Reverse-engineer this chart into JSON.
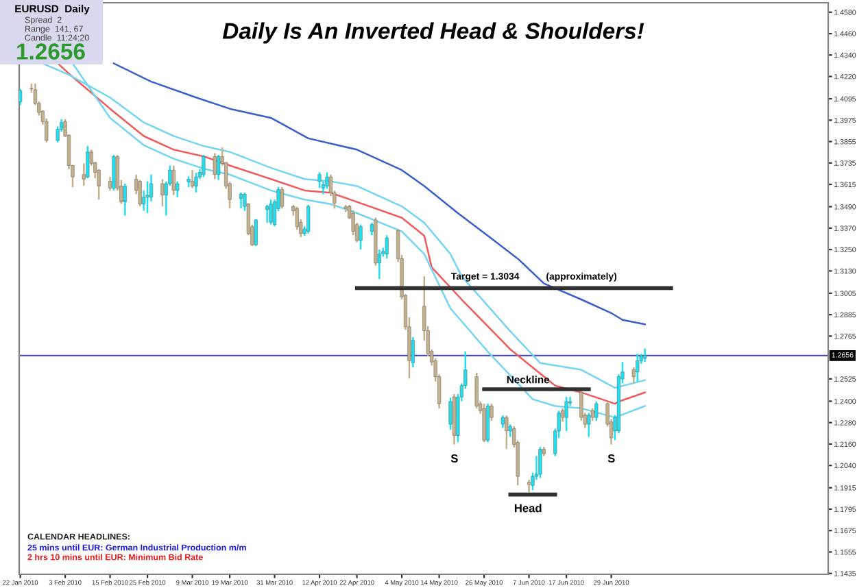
{
  "chart_data": {
    "type": "candlestick",
    "title": "Daily Is An Inverted Head & Shoulders!",
    "x": [
      "2010-01-22",
      "2010-01-25",
      "2010-01-26",
      "2010-01-27",
      "2010-01-28",
      "2010-01-29",
      "2010-02-01",
      "2010-02-02",
      "2010-02-03",
      "2010-02-04",
      "2010-02-05",
      "2010-02-08",
      "2010-02-09",
      "2010-02-10",
      "2010-02-11",
      "2010-02-12",
      "2010-02-15",
      "2010-02-16",
      "2010-02-17",
      "2010-02-18",
      "2010-02-19",
      "2010-02-22",
      "2010-02-23",
      "2010-02-24",
      "2010-02-25",
      "2010-02-26",
      "2010-03-01",
      "2010-03-02",
      "2010-03-03",
      "2010-03-04",
      "2010-03-05",
      "2010-03-08",
      "2010-03-09",
      "2010-03-10",
      "2010-03-11",
      "2010-03-12",
      "2010-03-15",
      "2010-03-16",
      "2010-03-17",
      "2010-03-18",
      "2010-03-19",
      "2010-03-22",
      "2010-03-23",
      "2010-03-24",
      "2010-03-25",
      "2010-03-26",
      "2010-03-29",
      "2010-03-30",
      "2010-03-31",
      "2010-04-01",
      "2010-04-02",
      "2010-04-05",
      "2010-04-06",
      "2010-04-07",
      "2010-04-08",
      "2010-04-09",
      "2010-04-12",
      "2010-04-13",
      "2010-04-14",
      "2010-04-15",
      "2010-04-16",
      "2010-04-19",
      "2010-04-20",
      "2010-04-21",
      "2010-04-22",
      "2010-04-23",
      "2010-04-26",
      "2010-04-27",
      "2010-04-28",
      "2010-04-29",
      "2010-04-30",
      "2010-05-03",
      "2010-05-04",
      "2010-05-05",
      "2010-05-06",
      "2010-05-07",
      "2010-05-10",
      "2010-05-11",
      "2010-05-12",
      "2010-05-13",
      "2010-05-14",
      "2010-05-17",
      "2010-05-18",
      "2010-05-19",
      "2010-05-20",
      "2010-05-21",
      "2010-05-24",
      "2010-05-25",
      "2010-05-26",
      "2010-05-27",
      "2010-05-28",
      "2010-05-31",
      "2010-06-01",
      "2010-06-02",
      "2010-06-03",
      "2010-06-04",
      "2010-06-07",
      "2010-06-08",
      "2010-06-09",
      "2010-06-10",
      "2010-06-11",
      "2010-06-14",
      "2010-06-15",
      "2010-06-16",
      "2010-06-17",
      "2010-06-18",
      "2010-06-21",
      "2010-06-22",
      "2010-06-23",
      "2010-06-24",
      "2010-06-25",
      "2010-06-28",
      "2010-06-29",
      "2010-06-30",
      "2010-07-01",
      "2010-07-02",
      "2010-07-05",
      "2010-07-06",
      "2010-07-07",
      "2010-07-08"
    ],
    "ohlc": [
      [
        1.4077,
        1.415,
        1.406,
        1.414
      ],
      [
        1.4153,
        1.418,
        1.413,
        1.415
      ],
      [
        1.4145,
        1.418,
        1.406,
        1.4069
      ],
      [
        1.4069,
        1.408,
        1.4,
        1.4018
      ],
      [
        1.4026,
        1.403,
        1.395,
        1.3967
      ],
      [
        1.3967,
        1.3985,
        1.385,
        1.3861
      ],
      [
        1.3861,
        1.394,
        1.385,
        1.3924
      ],
      [
        1.3924,
        1.398,
        1.391,
        1.3962
      ],
      [
        1.3967,
        1.398,
        1.388,
        1.3886
      ],
      [
        1.3891,
        1.3895,
        1.37,
        1.3721
      ],
      [
        1.3721,
        1.3725,
        1.36,
        1.3657
      ],
      [
        1.367,
        1.3733,
        1.3607,
        1.3645
      ],
      [
        1.3657,
        1.383,
        1.365,
        1.3797
      ],
      [
        1.3797,
        1.381,
        1.372,
        1.3733
      ],
      [
        1.3738,
        1.374,
        1.365,
        1.3683
      ],
      [
        1.3695,
        1.37,
        1.353,
        1.3606
      ],
      [
        1.3632,
        1.3657,
        1.358,
        1.3594
      ],
      [
        1.3594,
        1.378,
        1.358,
        1.3771
      ],
      [
        1.3771,
        1.378,
        1.358,
        1.3594
      ],
      [
        1.3606,
        1.364,
        1.3505,
        1.3517
      ],
      [
        1.3517,
        1.362,
        1.3441,
        1.3606
      ],
      [
        1.3644,
        1.367,
        1.356,
        1.3581
      ],
      [
        1.3632,
        1.364,
        1.3492,
        1.3505
      ],
      [
        1.3505,
        1.358,
        1.3467,
        1.3543
      ],
      [
        1.3543,
        1.3632,
        1.3454,
        1.3555
      ],
      [
        1.3543,
        1.367,
        1.352,
        1.3619
      ],
      [
        1.3619,
        1.3644,
        1.3492,
        1.3555
      ],
      [
        1.3555,
        1.3632,
        1.3441,
        1.3619
      ],
      [
        1.3619,
        1.372,
        1.3607,
        1.3695
      ],
      [
        1.3695,
        1.372,
        1.3555,
        1.3581
      ],
      [
        1.3581,
        1.3632,
        1.3543,
        1.3619
      ],
      [
        1.363,
        1.366,
        1.36,
        1.3645
      ],
      [
        1.3632,
        1.3695,
        1.3594,
        1.3606
      ],
      [
        1.3606,
        1.368,
        1.357,
        1.3657
      ],
      [
        1.3657,
        1.37,
        1.3645,
        1.3683
      ],
      [
        1.367,
        1.378,
        1.3657,
        1.3771
      ],
      [
        1.3771,
        1.379,
        1.3645,
        1.367
      ],
      [
        1.367,
        1.378,
        1.364,
        1.3771
      ],
      [
        1.3771,
        1.3822,
        1.372,
        1.3733
      ],
      [
        1.3738,
        1.374,
        1.359,
        1.3606
      ],
      [
        1.3619,
        1.363,
        1.348,
        1.353
      ],
      [
        1.3535,
        1.357,
        1.348,
        1.356
      ],
      [
        1.3492,
        1.357,
        1.3466,
        1.356
      ],
      [
        1.3505,
        1.351,
        1.333,
        1.334
      ],
      [
        1.3378,
        1.339,
        1.327,
        1.3276
      ],
      [
        1.3276,
        1.342,
        1.327,
        1.3416
      ],
      [
        1.3474,
        1.35,
        1.34,
        1.3492
      ],
      [
        1.3403,
        1.353,
        1.339,
        1.3505
      ],
      [
        1.339,
        1.353,
        1.338,
        1.3517
      ],
      [
        1.3479,
        1.36,
        1.3465,
        1.3586
      ],
      [
        1.3586,
        1.36,
        1.348,
        1.3492
      ],
      [
        1.3492,
        1.35,
        1.344,
        1.3466
      ],
      [
        1.3479,
        1.349,
        1.336,
        1.3378
      ],
      [
        1.3403,
        1.342,
        1.332,
        1.334
      ],
      [
        1.334,
        1.338,
        1.3327,
        1.3365
      ],
      [
        1.3352,
        1.35,
        1.334,
        1.3492
      ],
      [
        1.3632,
        1.3683,
        1.3594,
        1.367
      ],
      [
        1.3594,
        1.363,
        1.356,
        1.3614
      ],
      [
        1.3606,
        1.3683,
        1.359,
        1.3657
      ],
      [
        1.3657,
        1.367,
        1.355,
        1.3568
      ],
      [
        1.3568,
        1.358,
        1.3479,
        1.351
      ],
      [
        1.349,
        1.35,
        1.346,
        1.348
      ],
      [
        1.3492,
        1.35,
        1.342,
        1.3428
      ],
      [
        1.3454,
        1.347,
        1.333,
        1.3352
      ],
      [
        1.339,
        1.34,
        1.329,
        1.3301
      ],
      [
        1.3301,
        1.339,
        1.325,
        1.3378
      ],
      [
        1.3352,
        1.34,
        1.333,
        1.339
      ],
      [
        1.3416,
        1.343,
        1.316,
        1.3174
      ],
      [
        1.3174,
        1.325,
        1.3085,
        1.3225
      ],
      [
        1.3225,
        1.326,
        1.321,
        1.324
      ],
      [
        1.3225,
        1.333,
        1.32,
        1.3314
      ],
      [
        1.3357,
        1.3365,
        1.318,
        1.3199
      ],
      [
        1.3199,
        1.322,
        1.297,
        1.2985
      ],
      [
        1.2993,
        1.3,
        1.28,
        1.2817
      ],
      [
        1.2817,
        1.287,
        1.2527,
        1.2627
      ],
      [
        1.2615,
        1.276,
        1.259,
        1.2741
      ],
      [
        1.2932,
        1.31,
        1.274,
        1.2795
      ],
      [
        1.2795,
        1.282,
        1.265,
        1.2666
      ],
      [
        1.268,
        1.269,
        1.26,
        1.262
      ],
      [
        1.2627,
        1.264,
        1.251,
        1.2537
      ],
      [
        1.2538,
        1.255,
        1.236,
        1.2386
      ],
      [
        1.2271,
        1.242,
        1.224,
        1.2398
      ],
      [
        1.2424,
        1.244,
        1.2157,
        1.2208
      ],
      [
        1.2208,
        1.244,
        1.217,
        1.2424
      ],
      [
        1.2424,
        1.25,
        1.24,
        1.2487
      ],
      [
        1.2487,
        1.2678,
        1.247,
        1.2576
      ],
      [
        1.2538,
        1.256,
        1.236,
        1.2373
      ],
      [
        1.2386,
        1.24,
        1.233,
        1.2347
      ],
      [
        1.236,
        1.2386,
        1.217,
        1.2182
      ],
      [
        1.2182,
        1.2386,
        1.217,
        1.2373
      ],
      [
        1.2373,
        1.2386,
        1.229,
        1.2309
      ],
      [
        1.2271,
        1.232,
        1.225,
        1.2309
      ],
      [
        1.2309,
        1.232,
        1.2131,
        1.2233
      ],
      [
        1.2233,
        1.227,
        1.22,
        1.2258
      ],
      [
        1.2246,
        1.226,
        1.214,
        1.2157
      ],
      [
        1.2169,
        1.218,
        1.1928,
        1.1979
      ],
      [
        1.1945,
        1.196,
        1.189,
        1.1935
      ],
      [
        1.1928,
        1.2,
        1.1902,
        1.1979
      ],
      [
        1.1979,
        1.2093,
        1.196,
        1.1991
      ],
      [
        1.1991,
        1.2144,
        1.197,
        1.2131
      ],
      [
        1.2131,
        1.2144,
        1.2093,
        1.2106
      ],
      [
        1.2106,
        1.2246,
        1.2093,
        1.2233
      ],
      [
        1.2233,
        1.2347,
        1.2195,
        1.2335
      ],
      [
        1.2347,
        1.236,
        1.2284,
        1.2309
      ],
      [
        1.2309,
        1.2424,
        1.2233,
        1.2398
      ],
      [
        1.239,
        1.2424,
        1.2373,
        1.2398
      ],
      [
        1.2449,
        1.2467,
        1.229,
        1.2309
      ],
      [
        1.2322,
        1.2335,
        1.225,
        1.2271
      ],
      [
        1.2271,
        1.2335,
        1.22,
        1.2322
      ],
      [
        1.2347,
        1.236,
        1.229,
        1.2309
      ],
      [
        1.2309,
        1.2398,
        1.229,
        1.2386
      ],
      [
        1.2386,
        1.2398,
        1.2258,
        1.2271
      ],
      [
        1.2284,
        1.23,
        1.2157,
        1.2195
      ],
      [
        1.2233,
        1.2322,
        1.2182,
        1.2309
      ],
      [
        1.2233,
        1.255,
        1.222,
        1.2538
      ],
      [
        1.2525,
        1.262,
        1.25,
        1.2564
      ],
      [
        1.2576,
        1.259,
        1.25,
        1.2538
      ],
      [
        1.2564,
        1.2665,
        1.251,
        1.2627
      ],
      [
        1.2627,
        1.2665,
        1.261,
        1.2653
      ],
      [
        1.264,
        1.2695,
        1.262,
        1.2656
      ]
    ],
    "colors": [
      "#1ee0ee",
      "#c4b08a",
      "#c4b08a",
      "#c4b08a",
      "#c4b08a",
      "#c4b08a",
      "#1ee0ee",
      "#1ee0ee",
      "#c4b08a",
      "#c4b08a",
      "#c4b08a",
      "#c4b08a",
      "#1ee0ee",
      "#c4b08a",
      "#c4b08a",
      "#c4b08a",
      "#c4b08a",
      "#1ee0ee",
      "#c4b08a",
      "#c4b08a",
      "#1ee0ee",
      "#c4b08a",
      "#c4b08a",
      "#1ee0ee",
      "#1ee0ee",
      "#1ee0ee",
      "#c4b08a",
      "#1ee0ee",
      "#1ee0ee",
      "#c4b08a",
      "#1ee0ee",
      "#1ee0ee",
      "#c4b08a",
      "#1ee0ee",
      "#1ee0ee",
      "#1ee0ee",
      "#c4b08a",
      "#1ee0ee",
      "#c4b08a",
      "#c4b08a",
      "#c4b08a",
      "#1ee0ee",
      "#1ee0ee",
      "#c4b08a",
      "#c4b08a",
      "#1ee0ee",
      "#1ee0ee",
      "#1ee0ee",
      "#1ee0ee",
      "#1ee0ee",
      "#c4b08a",
      "#c4b08a",
      "#c4b08a",
      "#c4b08a",
      "#1ee0ee",
      "#1ee0ee",
      "#1ee0ee",
      "#1ee0ee",
      "#1ee0ee",
      "#c4b08a",
      "#c4b08a",
      "#c4b08a",
      "#c4b08a",
      "#c4b08a",
      "#c4b08a",
      "#1ee0ee",
      "#1ee0ee",
      "#c4b08a",
      "#1ee0ee",
      "#1ee0ee",
      "#1ee0ee",
      "#c4b08a",
      "#c4b08a",
      "#c4b08a",
      "#c4b08a",
      "#1ee0ee",
      "#c4b08a",
      "#c4b08a",
      "#c4b08a",
      "#c4b08a",
      "#c4b08a",
      "#1ee0ee",
      "#c4b08a",
      "#1ee0ee",
      "#1ee0ee",
      "#1ee0ee",
      "#c4b08a",
      "#c4b08a",
      "#c4b08a",
      "#1ee0ee",
      "#c4b08a",
      "#1ee0ee",
      "#c4b08a",
      "#1ee0ee",
      "#c4b08a",
      "#c4b08a",
      "#c4b08a",
      "#1ee0ee",
      "#1ee0ee",
      "#1ee0ee",
      "#c4b08a",
      "#1ee0ee",
      "#1ee0ee",
      "#c4b08a",
      "#1ee0ee",
      "#1ee0ee",
      "#c4b08a",
      "#c4b08a",
      "#1ee0ee",
      "#c4b08a",
      "#1ee0ee",
      "#c4b08a",
      "#c4b08a",
      "#1ee0ee",
      "#1ee0ee",
      "#1ee0ee",
      "#c4b08a",
      "#1ee0ee",
      "#1ee0ee",
      "#1ee0ee"
    ],
    "series": [
      {
        "type": "line",
        "color": "#3a5fcd",
        "x": [
          "2010-02-16",
          "2010-02-26",
          "2010-03-10",
          "2010-03-19",
          "2010-03-30",
          "2010-04-09",
          "2010-04-22",
          "2010-05-04",
          "2010-05-10",
          "2010-05-19",
          "2010-05-27",
          "2010-06-04",
          "2010-06-11",
          "2010-06-21",
          "2010-06-29",
          "2010-07-02",
          "2010-07-08"
        ],
        "values": [
          1.4293,
          1.4191,
          1.4102,
          1.4039,
          1.3988,
          1.3873,
          1.381,
          1.3695,
          1.3606,
          1.3454,
          1.3327,
          1.3199,
          1.306,
          1.297,
          1.2894,
          1.2856,
          1.2831
        ]
      },
      {
        "type": "line",
        "color": "#f05a5a",
        "x": [
          "2010-02-01",
          "2010-02-05",
          "2010-02-15",
          "2010-02-24",
          "2010-03-04",
          "2010-03-12",
          "2010-03-19",
          "2010-03-30",
          "2010-04-08",
          "2010-04-15",
          "2010-04-22",
          "2010-05-04",
          "2010-05-10",
          "2010-05-12",
          "2010-05-20",
          "2010-06-02",
          "2010-06-14",
          "2010-06-21",
          "2010-06-30",
          "2010-07-01",
          "2010-07-08"
        ],
        "values": [
          1.4293,
          1.4217,
          1.4039,
          1.3886,
          1.381,
          1.3772,
          1.3721,
          1.3645,
          1.3581,
          1.3568,
          1.3517,
          1.3428,
          1.3327,
          1.315,
          1.297,
          1.2691,
          1.2487,
          1.2449,
          1.2386,
          1.2398,
          1.2449
        ]
      },
      {
        "type": "line",
        "color": "#74d4f4",
        "x": [
          "2010-01-28",
          "2010-02-04",
          "2010-02-15",
          "2010-02-24",
          "2010-03-04",
          "2010-03-12",
          "2010-03-19",
          "2010-03-30",
          "2010-04-08",
          "2010-04-15",
          "2010-04-22",
          "2010-05-04",
          "2010-05-10",
          "2010-05-17",
          "2010-05-20",
          "2010-06-02",
          "2010-06-10",
          "2010-06-21",
          "2010-06-30",
          "2010-07-08"
        ],
        "values": [
          1.4293,
          1.4229,
          1.4102,
          1.3962,
          1.3886,
          1.383,
          1.3797,
          1.3708,
          1.3645,
          1.3632,
          1.3606,
          1.3492,
          1.34,
          1.3225,
          1.31,
          1.2792,
          1.2614,
          1.2576,
          1.2475,
          1.2518
        ]
      },
      {
        "type": "line",
        "color": "#74d4f4",
        "x": [
          "2010-02-05",
          "2010-02-15",
          "2010-02-24",
          "2010-03-04",
          "2010-03-12",
          "2010-03-19",
          "2010-03-30",
          "2010-04-08",
          "2010-04-15",
          "2010-04-22",
          "2010-05-04",
          "2010-05-10",
          "2010-05-17",
          "2010-05-27",
          "2010-06-08",
          "2010-06-14",
          "2010-06-21",
          "2010-06-30",
          "2010-07-08"
        ],
        "values": [
          1.4293,
          1.3988,
          1.3835,
          1.3759,
          1.3703,
          1.367,
          1.3581,
          1.353,
          1.3505,
          1.3454,
          1.3352,
          1.3225,
          1.292,
          1.2678,
          1.2411,
          1.2373,
          1.236,
          1.2309,
          1.2373
        ]
      },
      {
        "type": "line",
        "color": "#303030",
        "x": [
          "2010-04-22",
          "2010-07-15"
        ],
        "values": [
          1.3034,
          1.3034
        ]
      },
      {
        "type": "line",
        "color": "#303030",
        "x": [
          "2010-05-26",
          "2010-06-23"
        ],
        "values": [
          1.2467,
          1.2467
        ]
      },
      {
        "type": "line",
        "color": "#303030",
        "x": [
          "2010-06-02",
          "2010-06-14"
        ],
        "values": [
          1.1877,
          1.1877
        ]
      }
    ],
    "ref_lines": [
      {
        "axis": "y",
        "value": 1.2656,
        "label": "1.2656",
        "color": "#5050b0"
      }
    ],
    "annotations": [
      "Target = 1.3034",
      "(approximately)",
      "Neckline",
      "Head",
      "S",
      "S",
      "EURUSD  Daily",
      "Spread  2",
      "Range  141, 67",
      "Candle  11:24:20",
      "1.2656",
      "CALENDAR HEADLINES:",
      "25 mins until EUR: German Industrial Production m/m",
      "2 hrs 10 mins until EUR: Minimum Bid Rate"
    ],
    "xlim": [
      "2010-01-21T17:00",
      "2010-08-26"
    ],
    "xticks": [
      {
        "value": "2010-01-22",
        "label": "22 Jan 2010"
      },
      {
        "value": "2010-02-03",
        "label": "3 Feb 2010"
      },
      {
        "value": "2010-02-15",
        "label": "15 Feb 2010"
      },
      {
        "value": "2010-02-25",
        "label": "25 Feb 2010"
      },
      {
        "value": "2010-03-09",
        "label": "9 Mar 2010"
      },
      {
        "value": "2010-03-19",
        "label": "19 Mar 2010"
      },
      {
        "value": "2010-03-31",
        "label": "31 Mar 2010"
      },
      {
        "value": "2010-04-12",
        "label": "12 Apr 2010"
      },
      {
        "value": "2010-04-22",
        "label": "22 Apr 2010"
      },
      {
        "value": "2010-05-04",
        "label": "4 May 2010"
      },
      {
        "value": "2010-05-14",
        "label": "14 May 2010"
      },
      {
        "value": "2010-05-26",
        "label": "26 May 2010"
      },
      {
        "value": "2010-06-07",
        "label": "7 Jun 2010"
      },
      {
        "value": "2010-06-17",
        "label": "17 Jun 2010"
      },
      {
        "value": "2010-06-29",
        "label": "29 Jun 2010"
      }
    ],
    "ylim": [
      1.143,
      1.4633
    ],
    "yticks": [
      {
        "value": 1.458,
        "label": "1.4580"
      },
      {
        "value": 1.446,
        "label": "1.4460"
      },
      {
        "value": 1.434,
        "label": "1.4340"
      },
      {
        "value": 1.422,
        "label": "1.4220"
      },
      {
        "value": 1.4095,
        "label": "1.4095"
      },
      {
        "value": 1.3975,
        "label": "1.3975"
      },
      {
        "value": 1.3855,
        "label": "1.3855"
      },
      {
        "value": 1.3735,
        "label": "1.3735"
      },
      {
        "value": 1.3615,
        "label": "1.3615"
      },
      {
        "value": 1.349,
        "label": "1.3490"
      },
      {
        "value": 1.337,
        "label": "1.3370"
      },
      {
        "value": 1.325,
        "label": "1.3250"
      },
      {
        "value": 1.313,
        "label": "1.3130"
      },
      {
        "value": 1.3005,
        "label": "1.3005"
      },
      {
        "value": 1.2885,
        "label": "1.2885"
      },
      {
        "value": 1.2765,
        "label": "1.2765"
      },
      {
        "value": 1.2525,
        "label": "1.2525"
      },
      {
        "value": 1.24,
        "label": "1.2400"
      },
      {
        "value": 1.228,
        "label": "1.2280"
      },
      {
        "value": 1.216,
        "label": "1.2160"
      },
      {
        "value": 1.204,
        "label": "1.2040"
      },
      {
        "value": 1.1915,
        "label": "1.1915"
      },
      {
        "value": 1.1795,
        "label": "1.1795"
      },
      {
        "value": 1.1675,
        "label": "1.1675"
      },
      {
        "value": 1.1555,
        "label": "1.1555"
      },
      {
        "value": 1.1435,
        "label": "1.1435"
      }
    ]
  }
}
